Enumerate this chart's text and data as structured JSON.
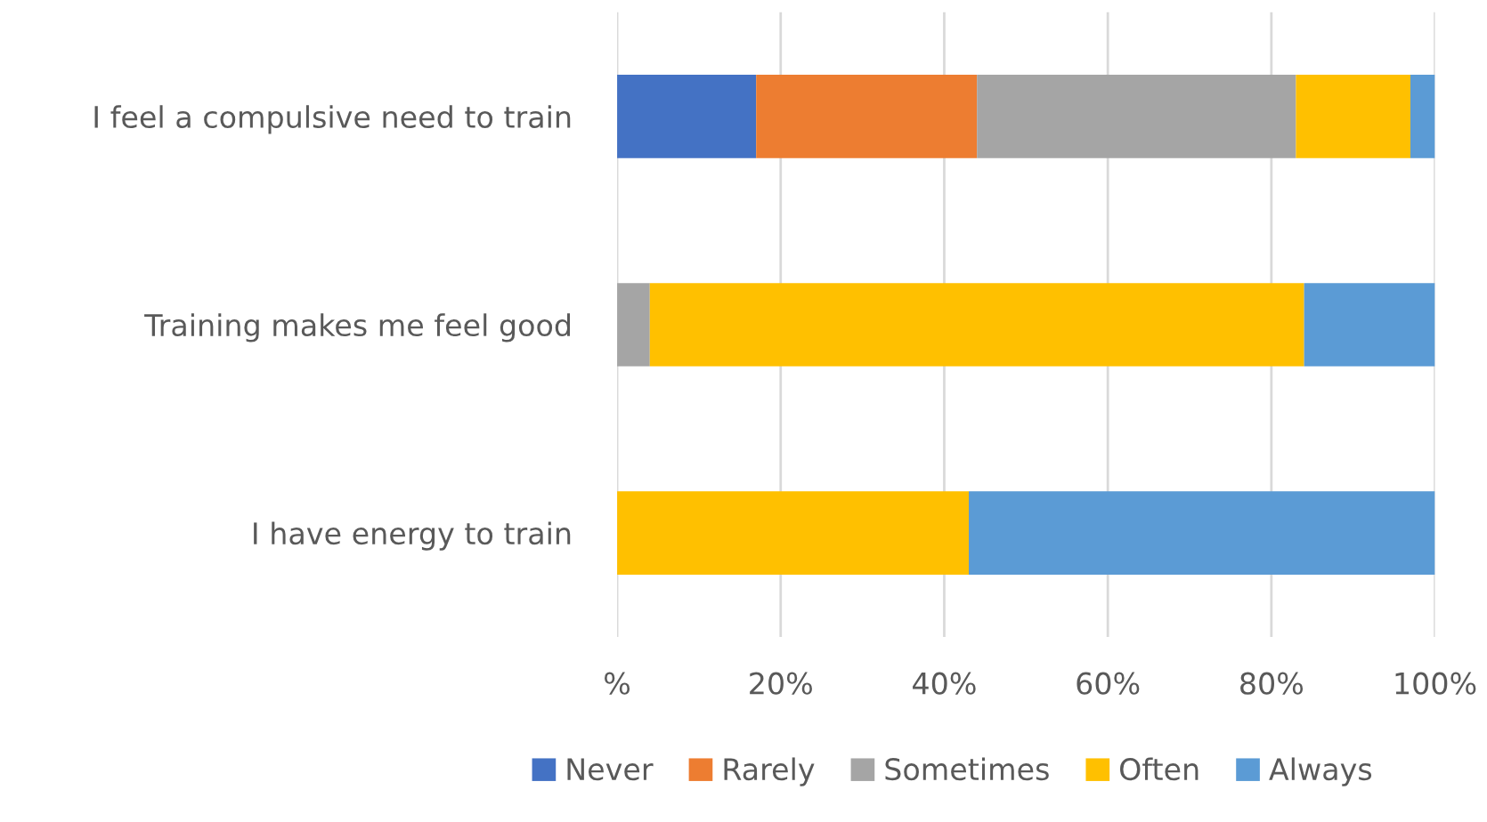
{
  "chart_data": {
    "type": "bar",
    "orientation": "horizontal",
    "stacked": true,
    "categories": [
      "I feel a compulsive need to train",
      "Training makes me feel good",
      "I have energy to train"
    ],
    "series": [
      {
        "name": "Never",
        "color": "#4472c4",
        "values": [
          17,
          0,
          0
        ]
      },
      {
        "name": "Rarely",
        "color": "#ed7d31",
        "values": [
          27,
          0,
          0
        ]
      },
      {
        "name": "Sometimes",
        "color": "#a5a5a5",
        "values": [
          39,
          4,
          0
        ]
      },
      {
        "name": "Often",
        "color": "#ffc000",
        "values": [
          14,
          80,
          43
        ]
      },
      {
        "name": "Always",
        "color": "#5b9bd5",
        "values": [
          3,
          16,
          57
        ]
      }
    ],
    "xlim": [
      0,
      100
    ],
    "xticks": [
      {
        "value": 0,
        "label": "%"
      },
      {
        "value": 20,
        "label": "20%"
      },
      {
        "value": 40,
        "label": "40%"
      },
      {
        "value": 60,
        "label": "60%"
      },
      {
        "value": 80,
        "label": "80%"
      },
      {
        "value": 100,
        "label": "100%"
      }
    ],
    "grid": "x",
    "legend": "bottom"
  }
}
